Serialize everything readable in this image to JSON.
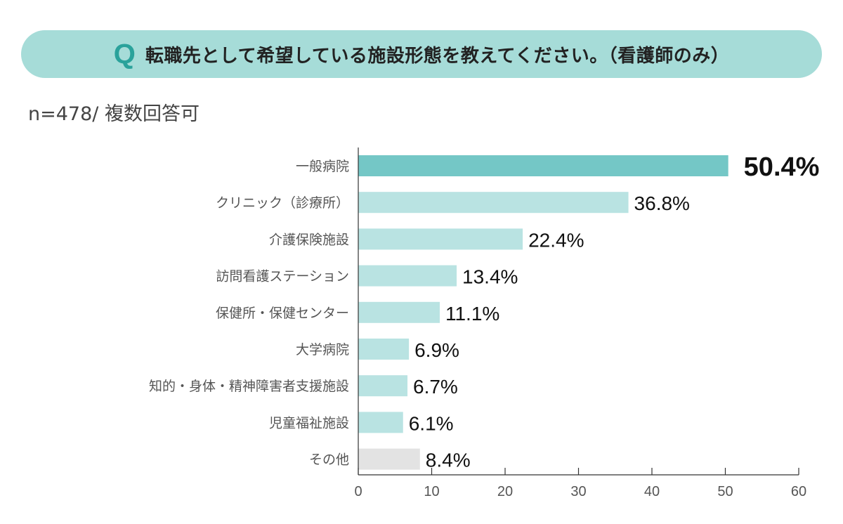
{
  "title": {
    "q_mark": "Q",
    "text": "転職先として希望している施設形態を教えてください。（看護師のみ）"
  },
  "subtitle": "n=478/ 複数回答可",
  "chart_data": {
    "type": "bar",
    "orientation": "horizontal",
    "categories": [
      "一般病院",
      "クリニック（診療所）",
      "介護保険施設",
      "訪問看護ステーション",
      "保健所・保健センター",
      "大学病院",
      "知的・身体・精神障害者支援施設",
      "児童福祉施設",
      "その他"
    ],
    "values": [
      50.4,
      36.8,
      22.4,
      13.4,
      11.1,
      6.9,
      6.7,
      6.1,
      8.4
    ],
    "value_labels": [
      "50.4%",
      "36.8%",
      "22.4%",
      "13.4%",
      "11.1%",
      "6.9%",
      "6.7%",
      "6.1%",
      "8.4%"
    ],
    "xlim": [
      0,
      60
    ],
    "xticks": [
      0,
      10,
      20,
      30,
      40,
      50,
      60
    ],
    "colors": {
      "highlight": "#74c7c6",
      "default": "#b9e3e2",
      "other": "#e3e3e3"
    },
    "grid": false
  }
}
